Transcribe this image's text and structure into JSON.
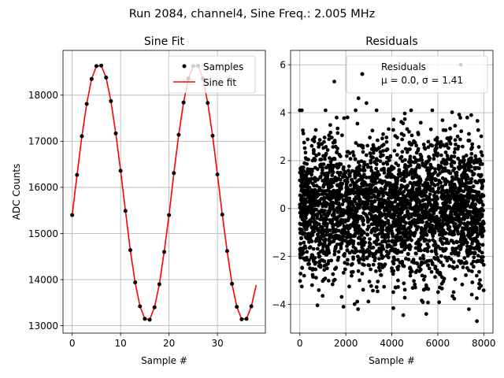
{
  "figure": {
    "suptitle": "Run 2084, channel4, Sine Freq.: 2.005 MHz"
  },
  "chart_data": [
    {
      "type": "scatter+line",
      "title": "Sine Fit",
      "xlabel": "Sample #",
      "ylabel": "ADC Counts",
      "xlim": [
        -1.9,
        39.9
      ],
      "ylim": [
        12840,
        18970
      ],
      "xticks": [
        0,
        10,
        20,
        30
      ],
      "yticks": [
        13000,
        14000,
        15000,
        16000,
        17000,
        18000
      ],
      "grid": true,
      "legend": {
        "location": "upper right",
        "entries": [
          "Samples",
          "Sine fit"
        ]
      },
      "series": [
        {
          "name": "Samples",
          "style": "points",
          "color": "#000000",
          "x": [
            0,
            1,
            2,
            3,
            4,
            5,
            6,
            7,
            8,
            9,
            10,
            11,
            12,
            13,
            14,
            15,
            16,
            17,
            18,
            19,
            20,
            21,
            22,
            23,
            24,
            25,
            26,
            27,
            28,
            29,
            30,
            31,
            32,
            33,
            34,
            35,
            36,
            37
          ],
          "y": [
            15400,
            16270,
            17110,
            17810,
            18350,
            18630,
            18640,
            18380,
            17870,
            17170,
            16360,
            15490,
            14640,
            13940,
            13420,
            13150,
            13130,
            13400,
            13900,
            14600,
            15400,
            16310,
            17140,
            17840,
            18360,
            18630,
            18640,
            18360,
            17830,
            17120,
            16280,
            15410,
            14620,
            13910,
            13410,
            13140,
            13150,
            13420
          ]
        },
        {
          "name": "Sine fit",
          "style": "line",
          "color": "#ff0000",
          "x": [
            0,
            1,
            2,
            3,
            4,
            5,
            6,
            7,
            8,
            9,
            10,
            11,
            12,
            13,
            14,
            15,
            16,
            17,
            18,
            19,
            20,
            21,
            22,
            23,
            24,
            25,
            26,
            27,
            28,
            29,
            30,
            31,
            32,
            33,
            34,
            35,
            36,
            37,
            38
          ],
          "y": [
            15400,
            16270,
            17110,
            17810,
            18350,
            18630,
            18640,
            18380,
            17870,
            17170,
            16360,
            15490,
            14640,
            13940,
            13420,
            13150,
            13130,
            13400,
            13900,
            14600,
            15400,
            16310,
            17140,
            17840,
            18360,
            18630,
            18640,
            18360,
            17830,
            17120,
            16280,
            15410,
            14620,
            13910,
            13410,
            13140,
            13150,
            13420,
            13880
          ]
        }
      ]
    },
    {
      "type": "scatter",
      "title": "Residuals",
      "xlabel": "Sample #",
      "ylabel": "",
      "xlim": [
        -400,
        8400
      ],
      "ylim": [
        -5.2,
        6.6
      ],
      "xticks": [
        0,
        2000,
        4000,
        6000,
        8000
      ],
      "yticks": [
        -4,
        -2,
        0,
        2,
        4,
        6
      ],
      "grid": true,
      "legend": {
        "location": "upper right",
        "entries": [
          "Residuals\n$\\mu$ = 0.0, $\\sigma$ = 1.41"
        ]
      },
      "series": [
        {
          "name": "Residuals",
          "style": "points",
          "color": "#000000",
          "count": 8000,
          "distribution": {
            "mean": 0.0,
            "std": 1.41
          },
          "x_range": [
            0,
            8000
          ],
          "notable_points": [
            {
              "x": 7000,
              "y": 6.0
            },
            {
              "x": 1500,
              "y": 5.3
            },
            {
              "x": 2550,
              "y": 4.6
            },
            {
              "x": 2900,
              "y": 4.4
            },
            {
              "x": 7700,
              "y": -4.7
            },
            {
              "x": 4500,
              "y": -4.45
            },
            {
              "x": 5500,
              "y": -4.4
            },
            {
              "x": 1900,
              "y": -4.1
            }
          ]
        }
      ]
    }
  ],
  "legend_text": {
    "samples": "Samples",
    "sine_fit": "Sine fit",
    "residuals": "Residuals",
    "stats": "μ = 0.0, σ = 1.41"
  },
  "colors": {
    "fit": "#ff0000",
    "points": "#000000",
    "grid": "#b0b0b0"
  }
}
